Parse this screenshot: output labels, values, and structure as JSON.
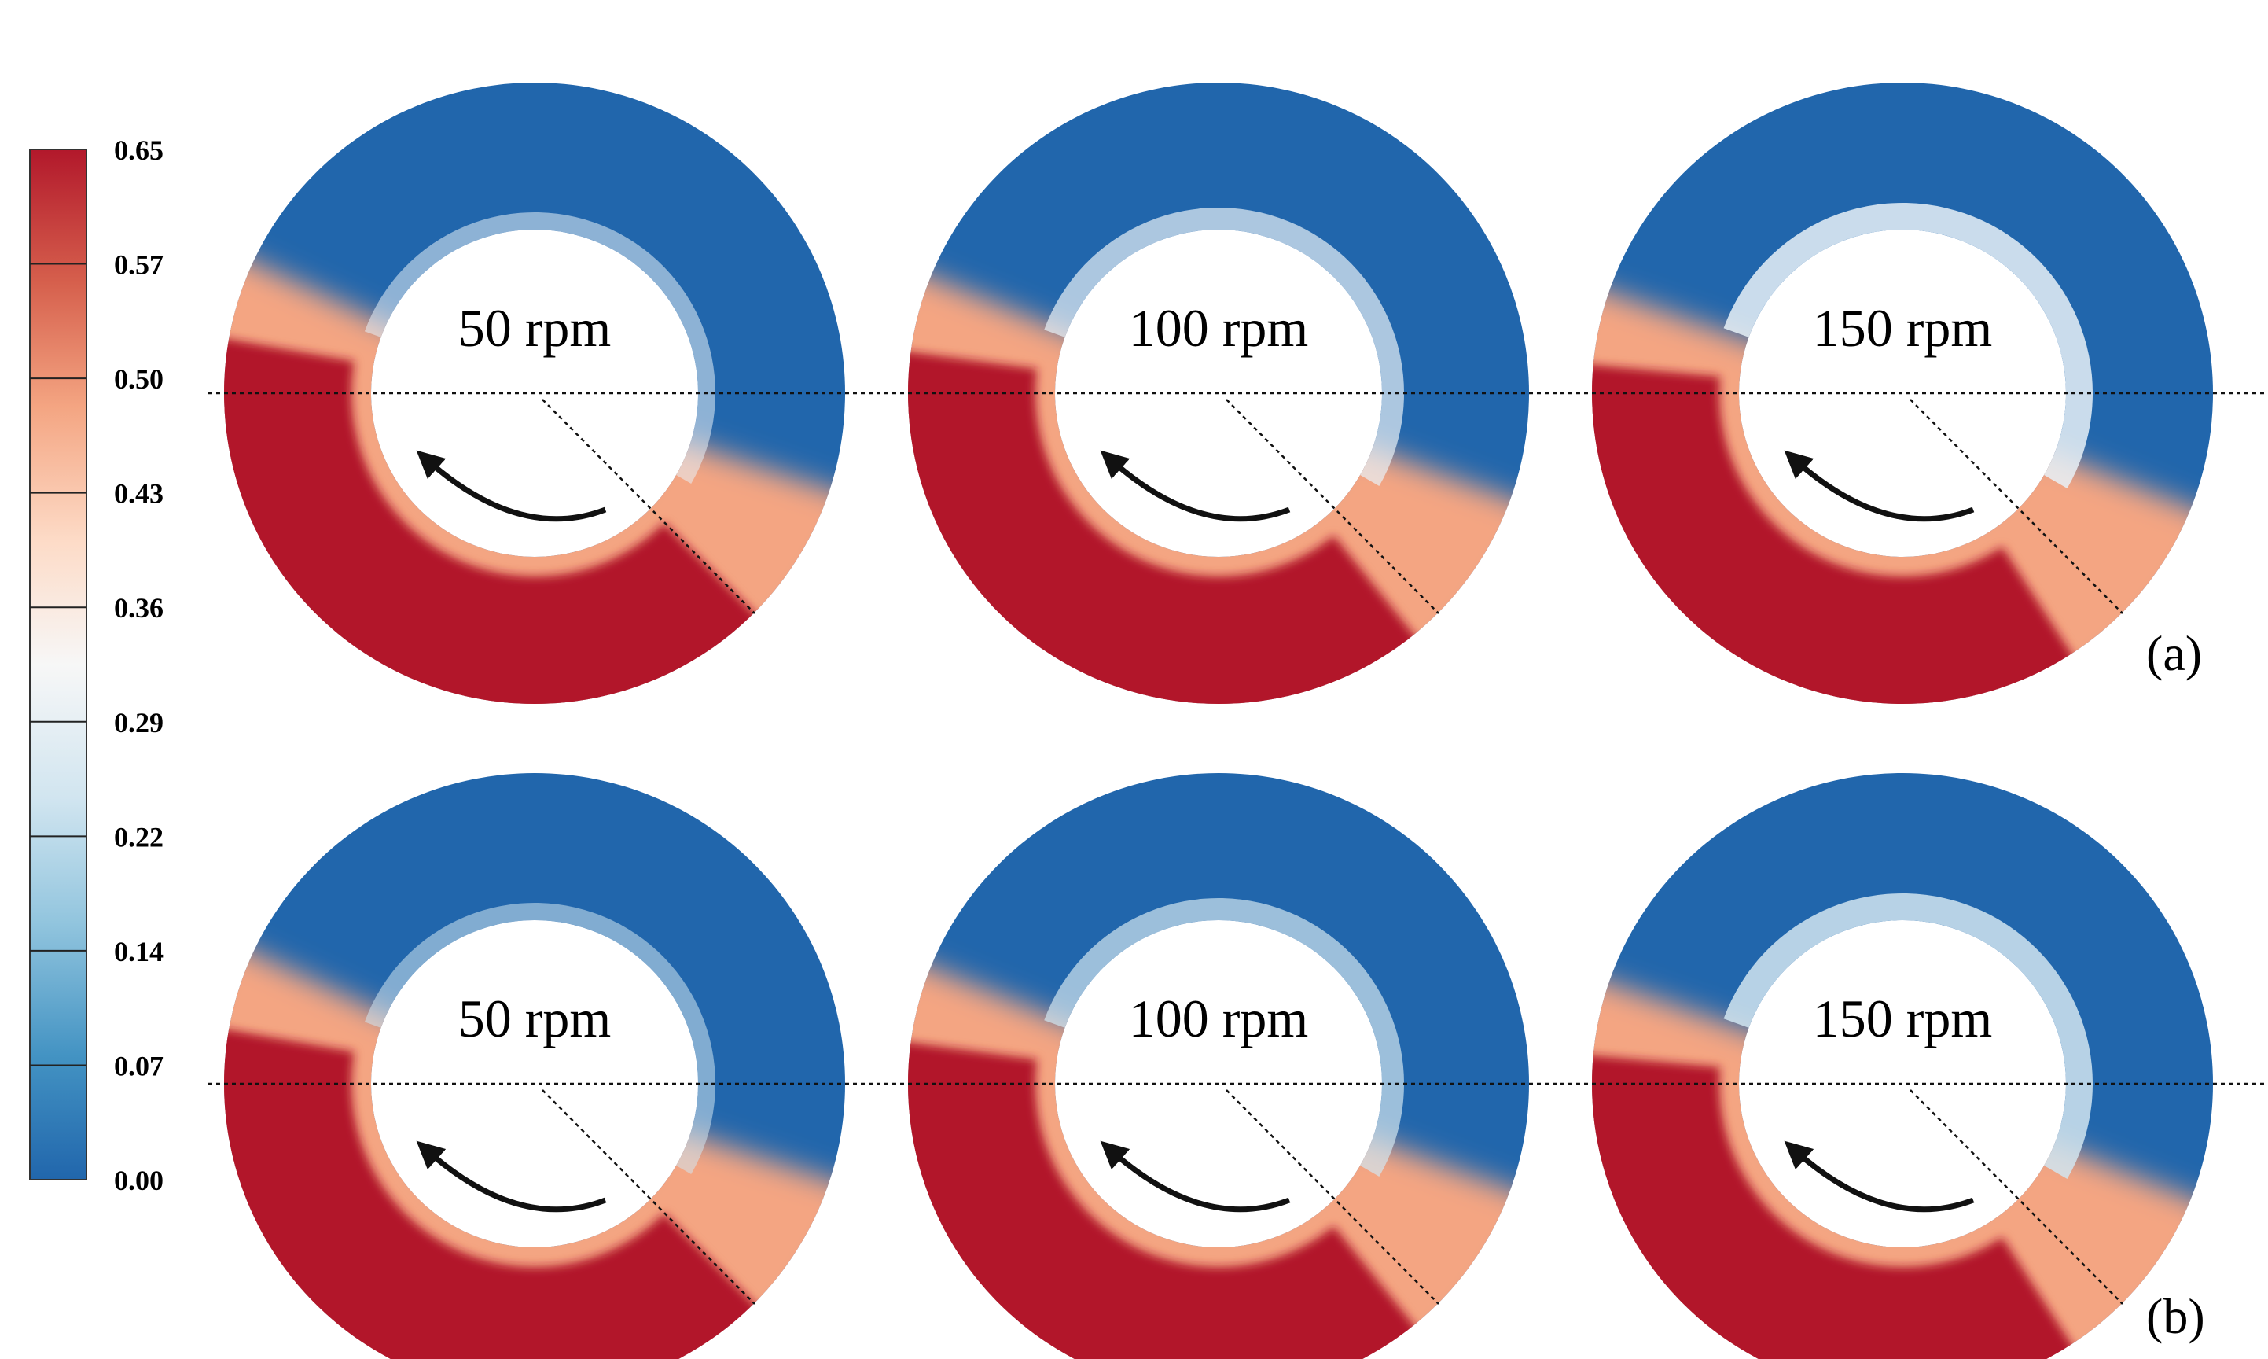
{
  "colorbar": {
    "ticks": [
      "0.65",
      "0.57",
      "0.50",
      "0.43",
      "0.36",
      "0.29",
      "0.22",
      "0.14",
      "0.07",
      "0.00"
    ],
    "min": 0.0,
    "max": 0.65,
    "colors": [
      "#2166ac",
      "#4393c3",
      "#92c5de",
      "#d1e5f0",
      "#f7f7f7",
      "#fddbc7",
      "#f4a582",
      "#d6604d",
      "#b2182b"
    ]
  },
  "panels": [
    {
      "label": "(a)",
      "rings": [
        {
          "speed_label": "50 rpm",
          "fill_level": 0.55
        },
        {
          "speed_label": "100 rpm",
          "fill_level": 0.55
        },
        {
          "speed_label": "150 rpm",
          "fill_level": 0.55
        }
      ]
    },
    {
      "label": "(b)",
      "rings": [
        {
          "speed_label": "50 rpm",
          "fill_level": 0.55
        },
        {
          "speed_label": "100 rpm",
          "fill_level": 0.55
        },
        {
          "speed_label": "150 rpm",
          "fill_level": 0.55
        }
      ]
    }
  ],
  "rotation_direction": "counterclockwise"
}
